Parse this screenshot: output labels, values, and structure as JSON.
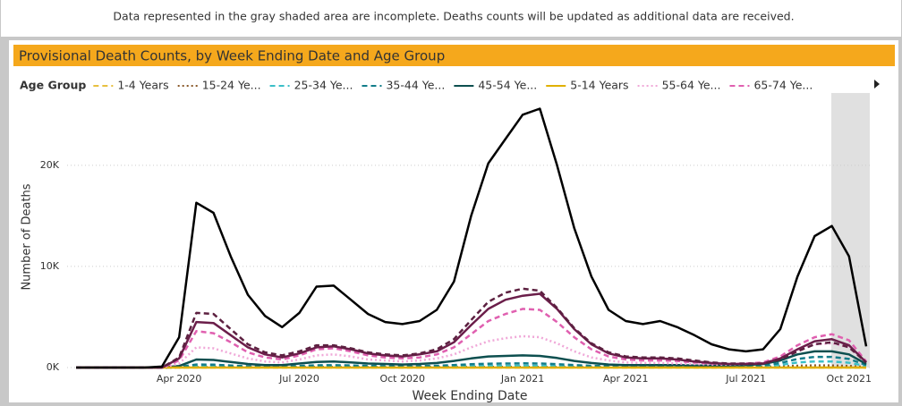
{
  "note": "Data represented in the gray shaded area are incomplete. Deaths counts will be updated as additional data are received.",
  "chart_data": {
    "type": "line",
    "title": "Provisional Death Counts, by Week Ending Date and Age Group",
    "legend_title": "Age Group",
    "xlabel": "Week Ending Date",
    "ylabel": "Number of Deaths",
    "categories": [
      null,
      null,
      null,
      null,
      null,
      null,
      "Apr 2020",
      null,
      null,
      null,
      null,
      null,
      null,
      "Jul 2020",
      null,
      null,
      null,
      null,
      null,
      "Oct 2020",
      null,
      null,
      null,
      null,
      null,
      null,
      "Jan 2021",
      null,
      null,
      null,
      null,
      null,
      "Apr 2021",
      null,
      null,
      null,
      null,
      null,
      null,
      "Jul 2021",
      null,
      null,
      null,
      null,
      null,
      "Oct 2021",
      null
    ],
    "ylim": [
      0,
      26000
    ],
    "yticks": [
      {
        "value": 0,
        "label": "0K"
      },
      {
        "value": 10000,
        "label": "10K"
      },
      {
        "value": 20000,
        "label": "20K"
      }
    ],
    "grid": true,
    "series": [
      {
        "name": "1-4 Years",
        "color": "#e8c040",
        "dash": "dashed",
        "values": [
          0,
          0,
          0,
          0,
          0,
          0,
          0,
          0,
          0,
          0,
          0,
          0,
          0,
          0,
          0,
          0,
          0,
          0,
          0,
          0,
          0,
          0,
          0,
          0,
          0,
          0,
          0,
          0,
          0,
          0,
          0,
          0,
          0,
          0,
          0,
          0,
          0,
          0,
          0,
          0,
          0,
          0,
          0,
          0,
          0,
          0,
          0
        ]
      },
      {
        "name": "15-24 Ye...",
        "color": "#8b5a2b",
        "dash": "dotted",
        "values": [
          0,
          0,
          0,
          0,
          0,
          0,
          10,
          40,
          40,
          30,
          25,
          25,
          25,
          35,
          50,
          55,
          45,
          40,
          35,
          35,
          35,
          40,
          45,
          55,
          60,
          65,
          65,
          60,
          55,
          45,
          35,
          30,
          30,
          30,
          30,
          30,
          30,
          30,
          35,
          45,
          60,
          110,
          180,
          210,
          200,
          160,
          50
        ]
      },
      {
        "name": "25-34 Ye...",
        "color": "#3bbfc8",
        "dash": "dashed",
        "values": [
          0,
          0,
          0,
          0,
          0,
          0,
          30,
          120,
          110,
          80,
          60,
          50,
          50,
          80,
          110,
          120,
          100,
          80,
          70,
          70,
          80,
          90,
          110,
          140,
          160,
          170,
          180,
          170,
          150,
          110,
          80,
          60,
          55,
          55,
          55,
          55,
          50,
          55,
          60,
          80,
          120,
          260,
          500,
          600,
          600,
          480,
          150
        ]
      },
      {
        "name": "35-44 Ye...",
        "color": "#127d8a",
        "dash": "dashed",
        "values": [
          0,
          0,
          0,
          0,
          0,
          0,
          60,
          300,
          280,
          200,
          130,
          100,
          100,
          160,
          220,
          240,
          200,
          160,
          140,
          130,
          150,
          180,
          250,
          330,
          380,
          400,
          420,
          400,
          340,
          250,
          180,
          130,
          110,
          110,
          110,
          110,
          100,
          100,
          100,
          130,
          200,
          450,
          850,
          1050,
          1050,
          850,
          250
        ]
      },
      {
        "name": "45-54 Ye...",
        "color": "#0d4f4f",
        "dash": "solid",
        "values": [
          0,
          0,
          0,
          0,
          0,
          0,
          150,
          800,
          750,
          550,
          350,
          250,
          250,
          400,
          550,
          600,
          500,
          400,
          350,
          300,
          350,
          450,
          650,
          900,
          1100,
          1150,
          1200,
          1150,
          950,
          650,
          450,
          300,
          250,
          250,
          250,
          250,
          200,
          200,
          200,
          250,
          350,
          700,
          1300,
          1600,
          1600,
          1300,
          350
        ]
      },
      {
        "name": "5-14 Years",
        "color": "#e0b000",
        "dash": "solid",
        "values": [
          0,
          0,
          0,
          0,
          0,
          0,
          0,
          0,
          0,
          0,
          0,
          0,
          0,
          0,
          0,
          0,
          0,
          0,
          0,
          0,
          0,
          0,
          0,
          0,
          0,
          0,
          0,
          0,
          0,
          0,
          0,
          0,
          0,
          0,
          0,
          0,
          0,
          0,
          0,
          0,
          0,
          0,
          0,
          0,
          0,
          0,
          0
        ]
      },
      {
        "name": "55-64 Ye...",
        "color": "#f0a8d8",
        "dash": "dotted",
        "values": [
          0,
          0,
          0,
          0,
          0,
          0,
          400,
          2000,
          1900,
          1400,
          900,
          600,
          500,
          800,
          1200,
          1300,
          1100,
          800,
          700,
          600,
          700,
          900,
          1300,
          2000,
          2600,
          2900,
          3100,
          3000,
          2400,
          1600,
          1000,
          700,
          500,
          450,
          450,
          400,
          350,
          300,
          300,
          350,
          450,
          900,
          1700,
          2300,
          2400,
          2000,
          500
        ]
      },
      {
        "name": "65-74 Ye...",
        "color": "#e060b0",
        "dash": "dashed",
        "values": [
          0,
          0,
          0,
          0,
          0,
          0,
          700,
          3600,
          3400,
          2500,
          1500,
          1000,
          800,
          1200,
          1800,
          1900,
          1600,
          1200,
          1000,
          900,
          1000,
          1300,
          2000,
          3300,
          4600,
          5300,
          5800,
          5700,
          4500,
          3000,
          1800,
          1100,
          800,
          700,
          700,
          650,
          500,
          400,
          350,
          400,
          500,
          1100,
          2200,
          3000,
          3300,
          2700,
          600
        ]
      },
      {
        "color": "#6b1e4a",
        "dash": "solid",
        "values": [
          0,
          0,
          0,
          0,
          0,
          0,
          900,
          4500,
          4400,
          3200,
          2000,
          1300,
          1000,
          1400,
          2000,
          2100,
          1800,
          1400,
          1200,
          1100,
          1300,
          1600,
          2500,
          4200,
          5800,
          6700,
          7100,
          7300,
          5800,
          3800,
          2300,
          1400,
          1000,
          900,
          900,
          800,
          600,
          450,
          350,
          350,
          400,
          900,
          1800,
          2600,
          2800,
          2200,
          500
        ]
      },
      {
        "color": "#5c2040",
        "dash": "dashed",
        "values": [
          0,
          0,
          0,
          0,
          0,
          0,
          1000,
          5400,
          5300,
          3800,
          2300,
          1500,
          1200,
          1600,
          2200,
          2200,
          1900,
          1500,
          1300,
          1200,
          1400,
          1800,
          2800,
          4700,
          6500,
          7400,
          7800,
          7600,
          5900,
          3900,
          2400,
          1500,
          1100,
          1000,
          1000,
          900,
          700,
          500,
          400,
          400,
          400,
          800,
          1600,
          2300,
          2500,
          2000,
          500
        ]
      },
      {
        "color": "#000000",
        "dash": "solid",
        "values": [
          0,
          0,
          0,
          0,
          0,
          100,
          3000,
          16300,
          15300,
          11000,
          7200,
          5100,
          4000,
          5400,
          8000,
          8100,
          6700,
          5300,
          4500,
          4300,
          4600,
          5700,
          8500,
          15000,
          20200,
          22600,
          25000,
          25600,
          20000,
          13800,
          9000,
          5700,
          4600,
          4300,
          4600,
          4000,
          3200,
          2300,
          1800,
          1600,
          1800,
          3800,
          9000,
          13000,
          14000,
          11000,
          2100
        ]
      }
    ]
  }
}
